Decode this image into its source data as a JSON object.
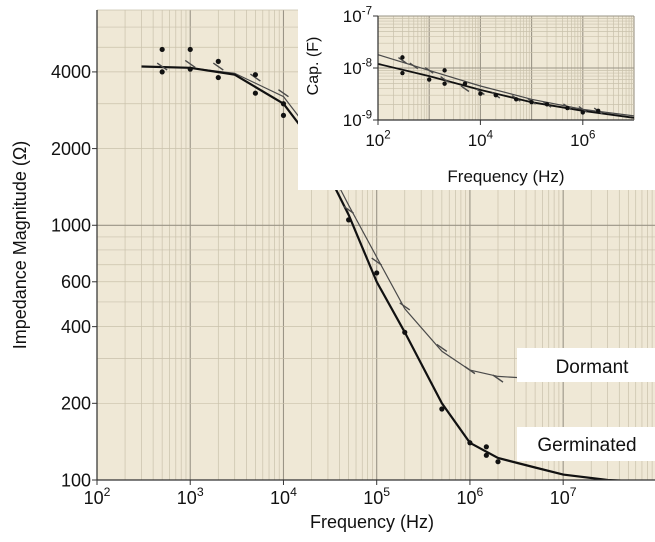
{
  "chart_data": [
    {
      "type": "scatter",
      "title": "",
      "xlabel": "Frequency (Hz)",
      "ylabel": "Impedance Magnitude (Ω)",
      "x_scale": "log",
      "y_scale": "log",
      "xlim": [
        100,
        100000000
      ],
      "ylim": [
        100,
        7000
      ],
      "grid": true,
      "x_ticks": [
        {
          "value": 100,
          "base": "10",
          "exp": "2"
        },
        {
          "value": 1000,
          "base": "10",
          "exp": "3"
        },
        {
          "value": 10000,
          "base": "10",
          "exp": "4"
        },
        {
          "value": 100000,
          "base": "10",
          "exp": "5"
        },
        {
          "value": 1000000,
          "base": "10",
          "exp": "6"
        },
        {
          "value": 10000000,
          "base": "10",
          "exp": "7"
        }
      ],
      "y_ticks": [
        {
          "value": 100,
          "label": "100"
        },
        {
          "value": 200,
          "label": "200"
        },
        {
          "value": 400,
          "label": "400"
        },
        {
          "value": 600,
          "label": "600"
        },
        {
          "value": 1000,
          "label": "1000"
        },
        {
          "value": 2000,
          "label": "2000"
        },
        {
          "value": 4000,
          "label": "4000"
        }
      ],
      "series": [
        {
          "name": "Dormant",
          "color": "#4a4a4a",
          "marker": "dash",
          "curve": [
            [
              300,
              4200
            ],
            [
              1000,
              4150
            ],
            [
              3000,
              3950
            ],
            [
              10000,
              3200
            ],
            [
              20000,
              2300
            ],
            [
              50000,
              1200
            ],
            [
              100000,
              750
            ],
            [
              200000,
              470
            ],
            [
              500000,
              320
            ],
            [
              1000000,
              270
            ],
            [
              2000000,
              255
            ],
            [
              5000000,
              250
            ],
            [
              20000000,
              250
            ],
            [
              100000000,
              250
            ]
          ],
          "points": [
            [
              500,
              4200
            ],
            [
              1000,
              4300
            ],
            [
              2000,
              4200
            ],
            [
              5000,
              3800
            ],
            [
              10000,
              3300
            ],
            [
              20000,
              2250
            ],
            [
              50000,
              1150
            ],
            [
              100000,
              720
            ],
            [
              200000,
              480
            ],
            [
              500000,
              330
            ],
            [
              1000000,
              270
            ],
            [
              2000000,
              250
            ]
          ]
        },
        {
          "name": "Germinated",
          "color": "#111111",
          "marker": "dot",
          "curve": [
            [
              300,
              4200
            ],
            [
              1000,
              4150
            ],
            [
              3000,
              3900
            ],
            [
              10000,
              3000
            ],
            [
              20000,
              2150
            ],
            [
              50000,
              1100
            ],
            [
              100000,
              600
            ],
            [
              200000,
              380
            ],
            [
              500000,
              200
            ],
            [
              1000000,
              140
            ],
            [
              2000000,
              122
            ],
            [
              5000000,
              112
            ],
            [
              10000000,
              105
            ],
            [
              30000000,
              100
            ],
            [
              100000000,
              98
            ]
          ],
          "points": [
            [
              500,
              4900
            ],
            [
              500,
              4000
            ],
            [
              1000,
              4900
            ],
            [
              1000,
              4100
            ],
            [
              2000,
              4400
            ],
            [
              2000,
              3800
            ],
            [
              5000,
              3900
            ],
            [
              5000,
              3300
            ],
            [
              10000,
              3000
            ],
            [
              10000,
              2700
            ],
            [
              20000,
              2400
            ],
            [
              20000,
              2200
            ],
            [
              50000,
              1050
            ],
            [
              100000,
              650
            ],
            [
              200000,
              380
            ],
            [
              500000,
              190
            ],
            [
              1000000,
              140
            ],
            [
              1500000,
              125
            ],
            [
              1500000,
              135
            ],
            [
              2000000,
              118
            ]
          ]
        }
      ]
    },
    {
      "type": "scatter",
      "title": "",
      "xlabel": "Frequency (Hz)",
      "ylabel": "Cap. (F)",
      "x_scale": "log",
      "y_scale": "log",
      "xlim": [
        100,
        10000000
      ],
      "ylim": [
        1e-09,
        1e-07
      ],
      "grid": true,
      "x_ticks": [
        {
          "value": 100,
          "base": "10",
          "exp": "2"
        },
        {
          "value": 10000,
          "base": "10",
          "exp": "4"
        },
        {
          "value": 1000000,
          "base": "10",
          "exp": "6"
        }
      ],
      "y_ticks": [
        {
          "value": 1e-09,
          "base": "10",
          "exp": "-9"
        },
        {
          "value": 1e-08,
          "base": "10",
          "exp": "-8"
        },
        {
          "value": 1e-07,
          "base": "10",
          "exp": "-7"
        }
      ],
      "series": [
        {
          "name": "Dormant",
          "color": "#4a4a4a",
          "marker": "dash",
          "curve": [
            [
              100,
              1.8e-08
            ],
            [
              1000,
              9e-09
            ],
            [
              10000,
              4.5e-09
            ],
            [
              100000,
              2.5e-09
            ],
            [
              1000000,
              1.6e-09
            ],
            [
              10000000,
              1.2e-09
            ]
          ],
          "points": [
            [
              300,
              1.4e-08
            ],
            [
              500,
              1.1e-08
            ],
            [
              1000,
              9e-09
            ],
            [
              2000,
              6e-09
            ],
            [
              5000,
              4e-09
            ],
            [
              10000,
              3.5e-09
            ],
            [
              20000,
              3e-09
            ],
            [
              50000,
              2.6e-09
            ],
            [
              100000,
              2.3e-09
            ],
            [
              200000,
              2e-09
            ],
            [
              500000,
              1.8e-09
            ],
            [
              1000000,
              1.6e-09
            ],
            [
              2000000,
              1.5e-09
            ]
          ]
        },
        {
          "name": "Germinated",
          "color": "#111111",
          "marker": "dot",
          "curve": [
            [
              100,
              1.2e-08
            ],
            [
              1000,
              7e-09
            ],
            [
              10000,
              3.8e-09
            ],
            [
              100000,
              2.2e-09
            ],
            [
              1000000,
              1.5e-09
            ],
            [
              10000000,
              1.1e-09
            ]
          ],
          "points": [
            [
              300,
              1.6e-08
            ],
            [
              300,
              8e-09
            ],
            [
              1000,
              6e-09
            ],
            [
              2000,
              9e-09
            ],
            [
              2000,
              5e-09
            ],
            [
              5000,
              5e-09
            ],
            [
              10000,
              3.2e-09
            ],
            [
              20000,
              3e-09
            ],
            [
              50000,
              2.5e-09
            ],
            [
              100000,
              2.2e-09
            ],
            [
              200000,
              2e-09
            ],
            [
              500000,
              1.7e-09
            ],
            [
              1000000,
              1.4e-09
            ],
            [
              2000000,
              1.5e-09
            ]
          ]
        }
      ]
    }
  ]
}
